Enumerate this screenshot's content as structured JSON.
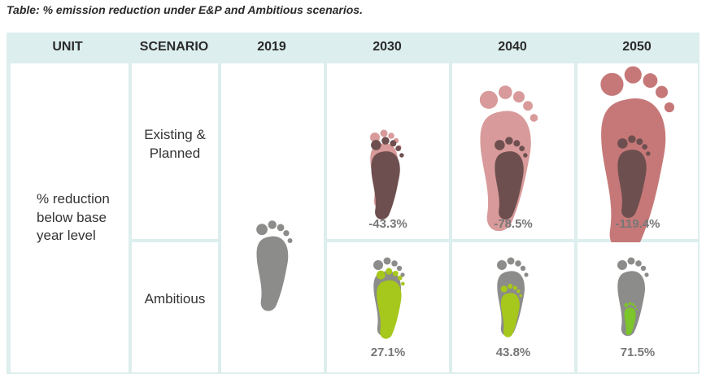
{
  "caption": "Table: % emission reduction under E&P and Ambitious scenarios.",
  "headers": {
    "unit": "UNIT",
    "scenario": "SCENARIO",
    "y2019": "2019",
    "y2030": "2030",
    "y2040": "2040",
    "y2050": "2050"
  },
  "unit_label": "% reduction below base year level",
  "rows": [
    {
      "scenario": "Existing & Planned",
      "values": [
        "-43.3%",
        "-78.5%",
        "-119.4%"
      ]
    },
    {
      "scenario": "Ambitious",
      "values": [
        "27.1%",
        "43.8%",
        "71.5%"
      ]
    }
  ],
  "colors": {
    "frame": "#dceeed",
    "footprint_grey": "#8c8c8a",
    "footprint_dark": "#6e4f4f",
    "footprint_pink": "#d89a9a",
    "footprint_green": "#a6c71c",
    "value_text": "#777777"
  }
}
